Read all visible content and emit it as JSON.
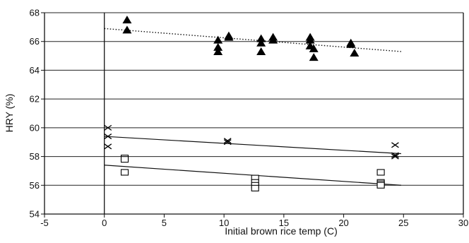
{
  "chart_data": {
    "type": "scatter",
    "title": "",
    "xlabel": "Initial brown rice temp (C)",
    "ylabel": "HRY (%)",
    "xlim": [
      -5,
      30
    ],
    "ylim": [
      54,
      68
    ],
    "x_ticks": [
      "-5",
      "0",
      "5",
      "10",
      "15",
      "20",
      "25",
      "30"
    ],
    "y_ticks": [
      "54",
      "56",
      "58",
      "60",
      "62",
      "64",
      "66",
      "68"
    ],
    "grid": "horizontal",
    "legend": "none",
    "series": [
      {
        "marker": "triangle",
        "points": [
          {
            "x": 1.9,
            "y": 67.5
          },
          {
            "x": 1.9,
            "y": 66.8
          },
          {
            "x": 9.5,
            "y": 66.1
          },
          {
            "x": 9.5,
            "y": 65.6
          },
          {
            "x": 9.5,
            "y": 65.3
          },
          {
            "x": 10.4,
            "y": 66.4
          },
          {
            "x": 10.4,
            "y": 66.3
          },
          {
            "x": 13.1,
            "y": 66.2
          },
          {
            "x": 13.1,
            "y": 65.9
          },
          {
            "x": 13.1,
            "y": 65.3
          },
          {
            "x": 14.1,
            "y": 66.3
          },
          {
            "x": 14.1,
            "y": 66.1
          },
          {
            "x": 17.2,
            "y": 66.3
          },
          {
            "x": 17.2,
            "y": 66.1
          },
          {
            "x": 17.2,
            "y": 65.7
          },
          {
            "x": 17.5,
            "y": 65.5
          },
          {
            "x": 17.5,
            "y": 64.9
          },
          {
            "x": 20.6,
            "y": 65.9
          },
          {
            "x": 20.6,
            "y": 65.8
          },
          {
            "x": 20.9,
            "y": 65.2
          }
        ],
        "trend": {
          "x": [
            0,
            24.8
          ],
          "y": [
            66.9,
            65.3
          ],
          "style": "dotted"
        }
      },
      {
        "marker": "x",
        "points": [
          {
            "x": 0.3,
            "y": 60.0
          },
          {
            "x": 0.3,
            "y": 59.4
          },
          {
            "x": 0.3,
            "y": 58.7
          },
          {
            "x": 10.3,
            "y": 59.1
          },
          {
            "x": 10.3,
            "y": 59.0
          },
          {
            "x": 24.3,
            "y": 58.8
          },
          {
            "x": 24.3,
            "y": 58.1
          },
          {
            "x": 24.3,
            "y": 58.0
          }
        ],
        "trend": {
          "x": [
            0,
            24.8
          ],
          "y": [
            59.4,
            58.2
          ],
          "style": "solid"
        }
      },
      {
        "marker": "square",
        "points": [
          {
            "x": 1.7,
            "y": 57.9
          },
          {
            "x": 1.7,
            "y": 57.8
          },
          {
            "x": 1.7,
            "y": 56.9
          },
          {
            "x": 12.6,
            "y": 56.5
          },
          {
            "x": 12.6,
            "y": 56.2
          },
          {
            "x": 12.6,
            "y": 56.0
          },
          {
            "x": 12.6,
            "y": 55.8
          },
          {
            "x": 23.1,
            "y": 56.9
          },
          {
            "x": 23.1,
            "y": 56.2
          },
          {
            "x": 23.1,
            "y": 56.1
          },
          {
            "x": 23.1,
            "y": 56.0
          }
        ],
        "trend": {
          "x": [
            0,
            24.8
          ],
          "y": [
            57.4,
            56.0
          ],
          "style": "solid"
        }
      }
    ]
  }
}
